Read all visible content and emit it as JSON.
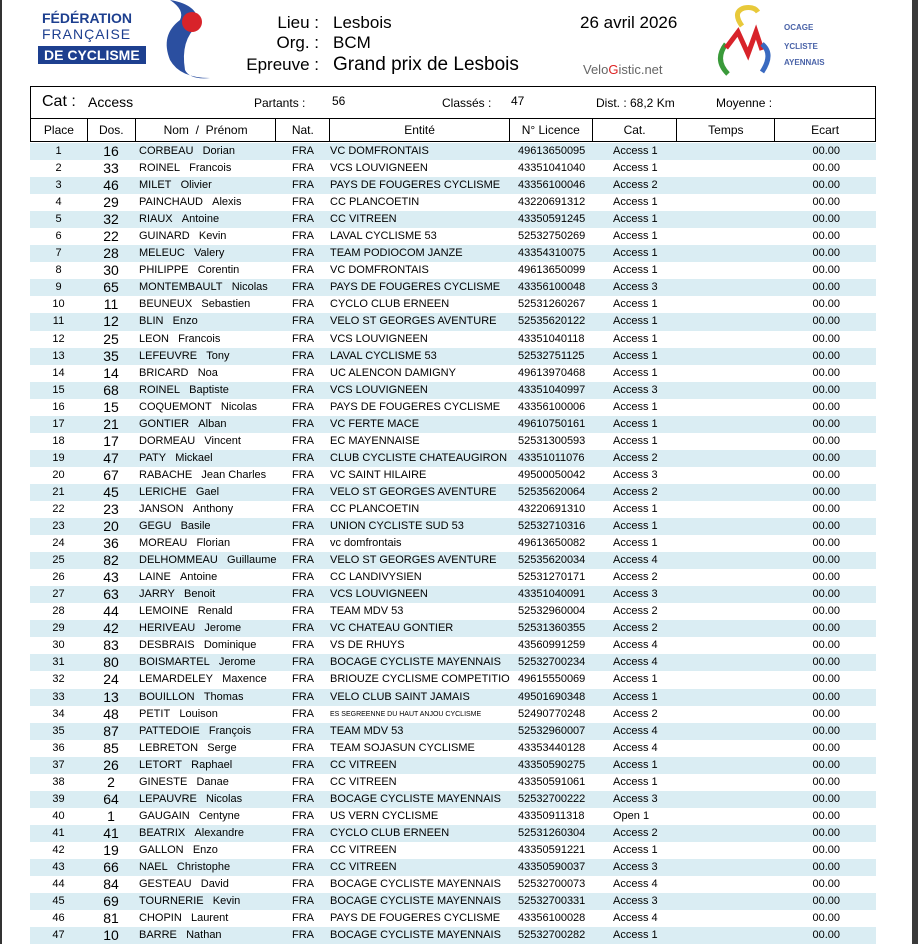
{
  "header": {
    "lieu_label": "Lieu :",
    "lieu": "Lesbois",
    "org_label": "Org. :",
    "org": "BCM",
    "epreuve_label": "Epreuve :",
    "epreuve": "Grand prix de Lesbois",
    "date": "26 avril 2026",
    "site_a": "Velo",
    "site_b": "G",
    "site_c": "istic.net"
  },
  "logo_ffc": {
    "line1": "FÉDÉRATION",
    "line2": "FRANÇAISE",
    "line3": "DE CYCLISME"
  },
  "logo_club": {
    "l1": "OCAGE",
    "l2": "YCLISTE",
    "l3": "AYENNAIS"
  },
  "info": {
    "cat_label": "Cat :",
    "cat": "Access",
    "partants_label": "Partants :",
    "partants": "56",
    "classes_label": "Classés :",
    "classes": "47",
    "dist": "Dist. : 68,2 Km",
    "moyenne_label": "Moyenne :"
  },
  "columns": [
    "Place",
    "Dos.",
    "Nom  /  Prénom",
    "Nat.",
    "Entité",
    "N° Licence",
    "Cat.",
    "Temps",
    "Ecart"
  ],
  "colors": {
    "stripe": "#daedf3",
    "ffc_blue": "#1d3f8f"
  },
  "rows": [
    [
      "1",
      "16",
      "CORBEAU",
      "Dorian",
      "FRA",
      "VC DOMFRONTAIS",
      "49613650095",
      "Access 1",
      "00.00"
    ],
    [
      "2",
      "33",
      "ROINEL",
      "Francois",
      "FRA",
      "VCS LOUVIGNEEN",
      "43351041040",
      "Access 1",
      "00.00"
    ],
    [
      "3",
      "46",
      "MILET",
      "Olivier",
      "FRA",
      "PAYS DE FOUGERES CYCLISME",
      "43356100046",
      "Access 2",
      "00.00"
    ],
    [
      "4",
      "29",
      "PAINCHAUD",
      "Alexis",
      "FRA",
      "CC PLANCOETIN",
      "43220691312",
      "Access 1",
      "00.00"
    ],
    [
      "5",
      "32",
      "RIAUX",
      "Antoine",
      "FRA",
      "CC VITREEN",
      "43350591245",
      "Access 1",
      "00.00"
    ],
    [
      "6",
      "22",
      "GUINARD",
      "Kevin",
      "FRA",
      "LAVAL CYCLISME 53",
      "52532750269",
      "Access 1",
      "00.00"
    ],
    [
      "7",
      "28",
      "MELEUC",
      "Valery",
      "FRA",
      "TEAM PODIOCOM JANZE",
      "43354310075",
      "Access 1",
      "00.00"
    ],
    [
      "8",
      "30",
      "PHILIPPE",
      "Corentin",
      "FRA",
      "VC DOMFRONTAIS",
      "49613650099",
      "Access 1",
      "00.00"
    ],
    [
      "9",
      "65",
      "MONTEMBAULT",
      "Nicolas",
      "FRA",
      "PAYS DE FOUGERES CYCLISME",
      "43356100048",
      "Access 3",
      "00.00"
    ],
    [
      "10",
      "11",
      "BEUNEUX",
      "Sebastien",
      "FRA",
      "CYCLO CLUB ERNEEN",
      "52531260267",
      "Access 1",
      "00.00"
    ],
    [
      "11",
      "12",
      "BLIN",
      "Enzo",
      "FRA",
      "VELO ST GEORGES AVENTURE",
      "52535620122",
      "Access 1",
      "00.00"
    ],
    [
      "12",
      "25",
      "LEON",
      "Francois",
      "FRA",
      "VCS LOUVIGNEEN",
      "43351040118",
      "Access 1",
      "00.00"
    ],
    [
      "13",
      "35",
      "LEFEUVRE",
      "Tony",
      "FRA",
      "LAVAL CYCLISME 53",
      "52532751125",
      "Access  1",
      "00.00"
    ],
    [
      "14",
      "14",
      "BRICARD",
      "Noa",
      "FRA",
      "UC ALENCON DAMIGNY",
      "49613970468",
      "Access 1",
      "00.00"
    ],
    [
      "15",
      "68",
      "ROINEL",
      "Baptiste",
      "FRA",
      "VCS LOUVIGNEEN",
      "43351040997",
      "Access 3",
      "00.00"
    ],
    [
      "16",
      "15",
      "COQUEMONT",
      "Nicolas",
      "FRA",
      "PAYS DE FOUGERES CYCLISME",
      "43356100006",
      "Access 1",
      "00.00"
    ],
    [
      "17",
      "21",
      "GONTIER",
      "Alban",
      "FRA",
      "VC FERTE MACE",
      "49610750161",
      "Access 1",
      "00.00"
    ],
    [
      "18",
      "17",
      "DORMEAU",
      "Vincent",
      "FRA",
      "EC MAYENNAISE",
      "52531300593",
      "Access 1",
      "00.00"
    ],
    [
      "19",
      "47",
      "PATY",
      "Mickael",
      "FRA",
      "CLUB CYCLISTE CHATEAUGIRON",
      "43351011076",
      "Access 2",
      "00.00"
    ],
    [
      "20",
      "67",
      "RABACHE",
      "Jean Charles",
      "FRA",
      "VC SAINT HILAIRE",
      "49500050042",
      "Access 3",
      "00.00"
    ],
    [
      "21",
      "45",
      "LERICHE",
      "Gael",
      "FRA",
      "VELO ST GEORGES AVENTURE",
      "52535620064",
      "Access 2",
      "00.00"
    ],
    [
      "22",
      "23",
      "JANSON",
      "Anthony",
      "FRA",
      "CC PLANCOETIN",
      "43220691310",
      "Access 1",
      "00.00"
    ],
    [
      "23",
      "20",
      "GEGU",
      "Basile",
      "FRA",
      "UNION CYCLISTE SUD 53",
      "52532710316",
      "Access 1",
      "00.00"
    ],
    [
      "24",
      "36",
      "MOREAU",
      "Florian",
      "FRA",
      "vc domfrontais",
      "49613650082",
      "Access  1",
      "00.00"
    ],
    [
      "25",
      "82",
      "DELHOMMEAU",
      "Guillaume",
      "FRA",
      "VELO ST GEORGES AVENTURE",
      "52535620034",
      "Access 4",
      "00.00"
    ],
    [
      "26",
      "43",
      "LAINE",
      "Antoine",
      "FRA",
      "CC LANDIVYSIEN",
      "52531270171",
      "Access 2",
      "00.00"
    ],
    [
      "27",
      "63",
      "JARRY",
      "Benoit",
      "FRA",
      "VCS LOUVIGNEEN",
      "43351040091",
      "Access 3",
      "00.00"
    ],
    [
      "28",
      "44",
      "LEMOINE",
      "Renald",
      "FRA",
      "TEAM MDV 53",
      "52532960004",
      "Access 2",
      "00.00"
    ],
    [
      "29",
      "42",
      "HERIVEAU",
      "Jerome",
      "FRA",
      "VC CHATEAU GONTIER",
      "52531360355",
      "Access 2",
      "00.00"
    ],
    [
      "30",
      "83",
      "DESBRAIS",
      "Dominique",
      "FRA",
      "VS DE RHUYS",
      "43560991259",
      "Access 4",
      "00.00"
    ],
    [
      "31",
      "80",
      "BOISMARTEL",
      "Jerome",
      "FRA",
      "BOCAGE CYCLISTE MAYENNAIS",
      "52532700234",
      "Access 4",
      "00.00"
    ],
    [
      "32",
      "24",
      "LEMARDELEY",
      "Maxence",
      "FRA",
      "BRIOUZE CYCLISME COMPETITION",
      "49615550069",
      "Access 1",
      "00.00"
    ],
    [
      "33",
      "13",
      "BOUILLON",
      "Thomas",
      "FRA",
      "VELO CLUB SAINT JAMAIS",
      "49501690348",
      "Access 1",
      "00.00"
    ],
    [
      "34",
      "48",
      "PETIT",
      "Louison",
      "FRA",
      "ES SEGREENNE DU HAUT ANJOU CYCLISME",
      "52490770248",
      "Access 2",
      "00.00"
    ],
    [
      "35",
      "87",
      "PATTEDOIE",
      "François",
      "FRA",
      "TEAM MDV 53",
      "52532960007",
      "Access 4",
      "00.00"
    ],
    [
      "36",
      "85",
      "LEBRETON",
      "Serge",
      "FRA",
      "TEAM SOJASUN CYCLISME",
      "43353440128",
      "Access 4",
      "00.00"
    ],
    [
      "37",
      "26",
      "LETORT",
      "Raphael",
      "FRA",
      "CC VITREEN",
      "43350590275",
      "Access 1",
      "00.00"
    ],
    [
      "38",
      "2",
      "GINESTE",
      "Danae",
      "FRA",
      "CC VITREEN",
      "43350591061",
      "Access 1",
      "00.00"
    ],
    [
      "39",
      "64",
      "LEPAUVRE",
      "Nicolas",
      "FRA",
      "BOCAGE CYCLISTE MAYENNAIS",
      "52532700222",
      "Access 3",
      "00.00"
    ],
    [
      "40",
      "1",
      "GAUGAIN",
      "Centyne",
      "FRA",
      "US VERN CYCLISME",
      "43350911318",
      "Open 1",
      "00.00"
    ],
    [
      "41",
      "41",
      "BEATRIX",
      "Alexandre",
      "FRA",
      "CYCLO CLUB ERNEEN",
      "52531260304",
      "Access 2",
      "00.00"
    ],
    [
      "42",
      "19",
      "GALLON",
      "Enzo",
      "FRA",
      "CC VITREEN",
      "43350591221",
      "Access 1",
      "00.00"
    ],
    [
      "43",
      "66",
      "NAEL",
      "Christophe",
      "FRA",
      "CC VITREEN",
      "43350590037",
      "Access 3",
      "00.00"
    ],
    [
      "44",
      "84",
      "GESTEAU",
      "David",
      "FRA",
      "BOCAGE CYCLISTE MAYENNAIS",
      "52532700073",
      "Access 4",
      "00.00"
    ],
    [
      "45",
      "69",
      "TOURNERIE",
      "Kevin",
      "FRA",
      "BOCAGE CYCLISTE MAYENNAIS",
      "52532700331",
      "Access 3",
      "00.00"
    ],
    [
      "46",
      "81",
      "CHOPIN",
      "Laurent",
      "FRA",
      "PAYS DE FOUGERES CYCLISME",
      "43356100028",
      "Access 4",
      "00.00"
    ],
    [
      "47",
      "10",
      "BARRE",
      "Nathan",
      "FRA",
      "BOCAGE CYCLISTE MAYENNAIS",
      "52532700282",
      "Access 1",
      "00.00"
    ]
  ]
}
